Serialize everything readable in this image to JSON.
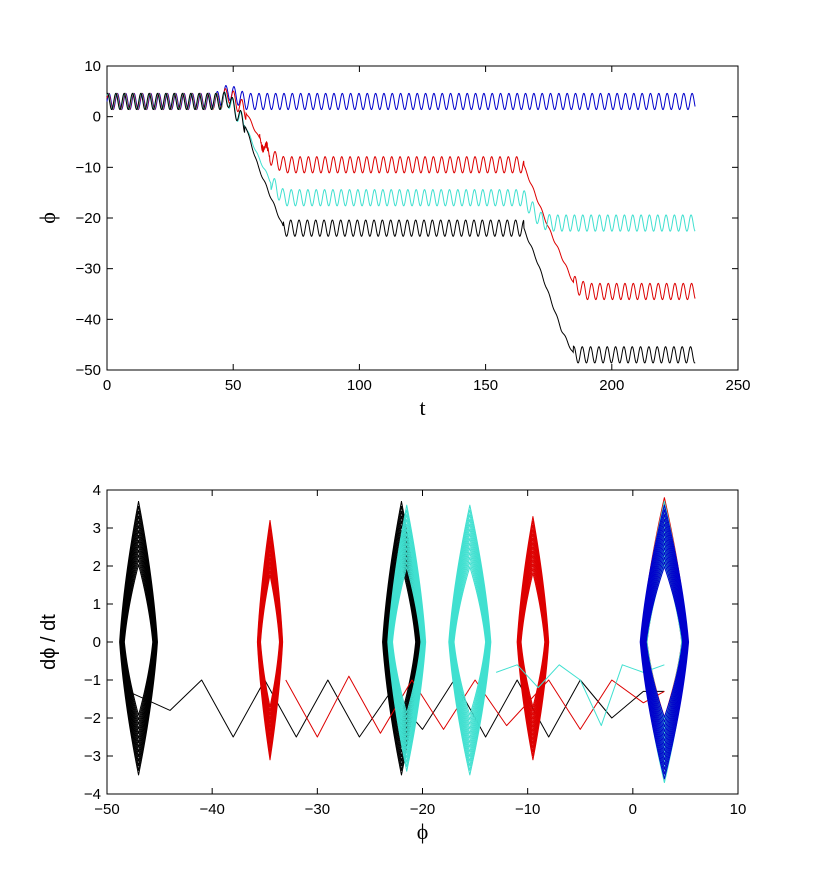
{
  "chart_data": [
    {
      "type": "line",
      "title": "",
      "xlabel": "t",
      "ylabel": "ϕ",
      "xlim": [
        0,
        250
      ],
      "ylim": [
        -50,
        10
      ],
      "xticks": [
        0,
        50,
        100,
        150,
        200,
        250
      ],
      "yticks": [
        -50,
        -40,
        -30,
        -20,
        -10,
        0,
        10
      ],
      "grid": false,
      "legend": "none",
      "series": [
        {
          "color": "#0000cc",
          "x": [
            0,
            20,
            40,
            45,
            48,
            55,
            70,
            100,
            130,
            160,
            190,
            220,
            233
          ],
          "y": [
            3,
            3,
            3,
            3.5,
            5,
            3,
            3,
            3,
            3,
            3,
            3,
            3,
            3
          ],
          "osc_amplitude": 1.6
        },
        {
          "color": "#dd0000",
          "x": [
            0,
            30,
            45,
            48,
            55,
            60,
            65,
            70,
            100,
            130,
            160,
            165,
            175,
            185,
            190,
            200,
            233
          ],
          "y": [
            3,
            3,
            3,
            4.5,
            1,
            -4,
            -8,
            -9.5,
            -9.5,
            -9.5,
            -9.5,
            -9.5,
            -22,
            -33,
            -34.5,
            -34.5,
            -34.5
          ],
          "osc_amplitude": 1.6
        },
        {
          "color": "#40e0d0",
          "x": [
            0,
            30,
            45,
            48,
            55,
            60,
            65,
            70,
            100,
            130,
            160,
            165,
            168,
            172,
            176,
            180,
            200,
            233
          ],
          "y": [
            3,
            3,
            3,
            3.5,
            -2,
            -8,
            -13,
            -16,
            -16,
            -16,
            -16,
            -16,
            -18,
            -20.5,
            -21,
            -21,
            -21,
            -21
          ],
          "osc_amplitude": 1.6
        },
        {
          "color": "#000000",
          "x": [
            0,
            30,
            45,
            48,
            55,
            60,
            65,
            70,
            100,
            130,
            160,
            165,
            170,
            175,
            180,
            185,
            190,
            200,
            233
          ],
          "y": [
            3,
            3,
            3,
            3.5,
            -2,
            -10,
            -16,
            -22,
            -22,
            -22,
            -22,
            -22,
            -28,
            -35,
            -42,
            -47,
            -47,
            -47,
            -47
          ],
          "osc_amplitude": 1.6
        }
      ]
    },
    {
      "type": "scatter",
      "title": "",
      "xlabel": "ϕ",
      "ylabel": "dϕ / dt",
      "xlim": [
        -50,
        10
      ],
      "ylim": [
        -4,
        4
      ],
      "xticks": [
        -50,
        -40,
        -30,
        -20,
        -10,
        0,
        10
      ],
      "yticks": [
        -4,
        -3,
        -2,
        -1,
        0,
        1,
        2,
        3,
        4
      ],
      "grid": false,
      "legend": "none",
      "series": [
        {
          "color": "#000000",
          "orbits": [
            {
              "center": -47,
              "halfwidth": 1.8,
              "top": 3.7,
              "bottom": -3.5
            },
            {
              "center": -22,
              "halfwidth": 1.8,
              "top": 3.7,
              "bottom": -3.5
            }
          ],
          "transit": {
            "x": [
              -48,
              -44,
              -41,
              -38,
              -35,
              -32,
              -29,
              -26,
              -23,
              -20,
              -17,
              -14,
              -11,
              -8,
              -5,
              -2,
              1,
              3
            ],
            "y": [
              -1.3,
              -1.8,
              -1.0,
              -2.5,
              -1.0,
              -2.5,
              -1.0,
              -2.5,
              -1.3,
              -2.3,
              -1.0,
              -2.5,
              -1.0,
              -2.5,
              -1.0,
              -2.0,
              -1.3,
              -1.3
            ]
          }
        },
        {
          "color": "#dd0000",
          "orbits": [
            {
              "center": -34.5,
              "halfwidth": 1.2,
              "top": 3.2,
              "bottom": -3.1
            },
            {
              "center": -9.5,
              "halfwidth": 1.5,
              "top": 3.3,
              "bottom": -3.1
            },
            {
              "center": 3,
              "halfwidth": 2.2,
              "top": 3.8,
              "bottom": -3.6
            }
          ],
          "transit": {
            "x": [
              -33,
              -30,
              -27,
              -24,
              -21,
              -18,
              -15,
              -12,
              -8,
              -5,
              -2,
              1,
              3
            ],
            "y": [
              -1.0,
              -2.5,
              -0.9,
              -2.4,
              -1.0,
              -2.3,
              -1.0,
              -2.2,
              -1.0,
              -2.3,
              -1.0,
              -1.6,
              -1.3
            ]
          }
        },
        {
          "color": "#40e0d0",
          "orbits": [
            {
              "center": -21.5,
              "halfwidth": 1.8,
              "top": 3.6,
              "bottom": -3.4
            },
            {
              "center": -15.5,
              "halfwidth": 2.0,
              "top": 3.6,
              "bottom": -3.5
            },
            {
              "center": 3,
              "halfwidth": 2.2,
              "top": 3.7,
              "bottom": -3.7
            }
          ],
          "transit": {
            "x": [
              -13,
              -11,
              -9,
              -7,
              -5,
              -3,
              -1,
              1,
              3
            ],
            "y": [
              -0.8,
              -0.6,
              -1.2,
              -0.6,
              -1.0,
              -2.2,
              -0.6,
              -0.8,
              -0.6
            ]
          }
        },
        {
          "color": "#0000cc",
          "orbits": [
            {
              "center": 3,
              "halfwidth": 2.3,
              "top": 3.6,
              "bottom": -3.6
            }
          ],
          "transit": {
            "x": [],
            "y": []
          }
        }
      ]
    }
  ]
}
